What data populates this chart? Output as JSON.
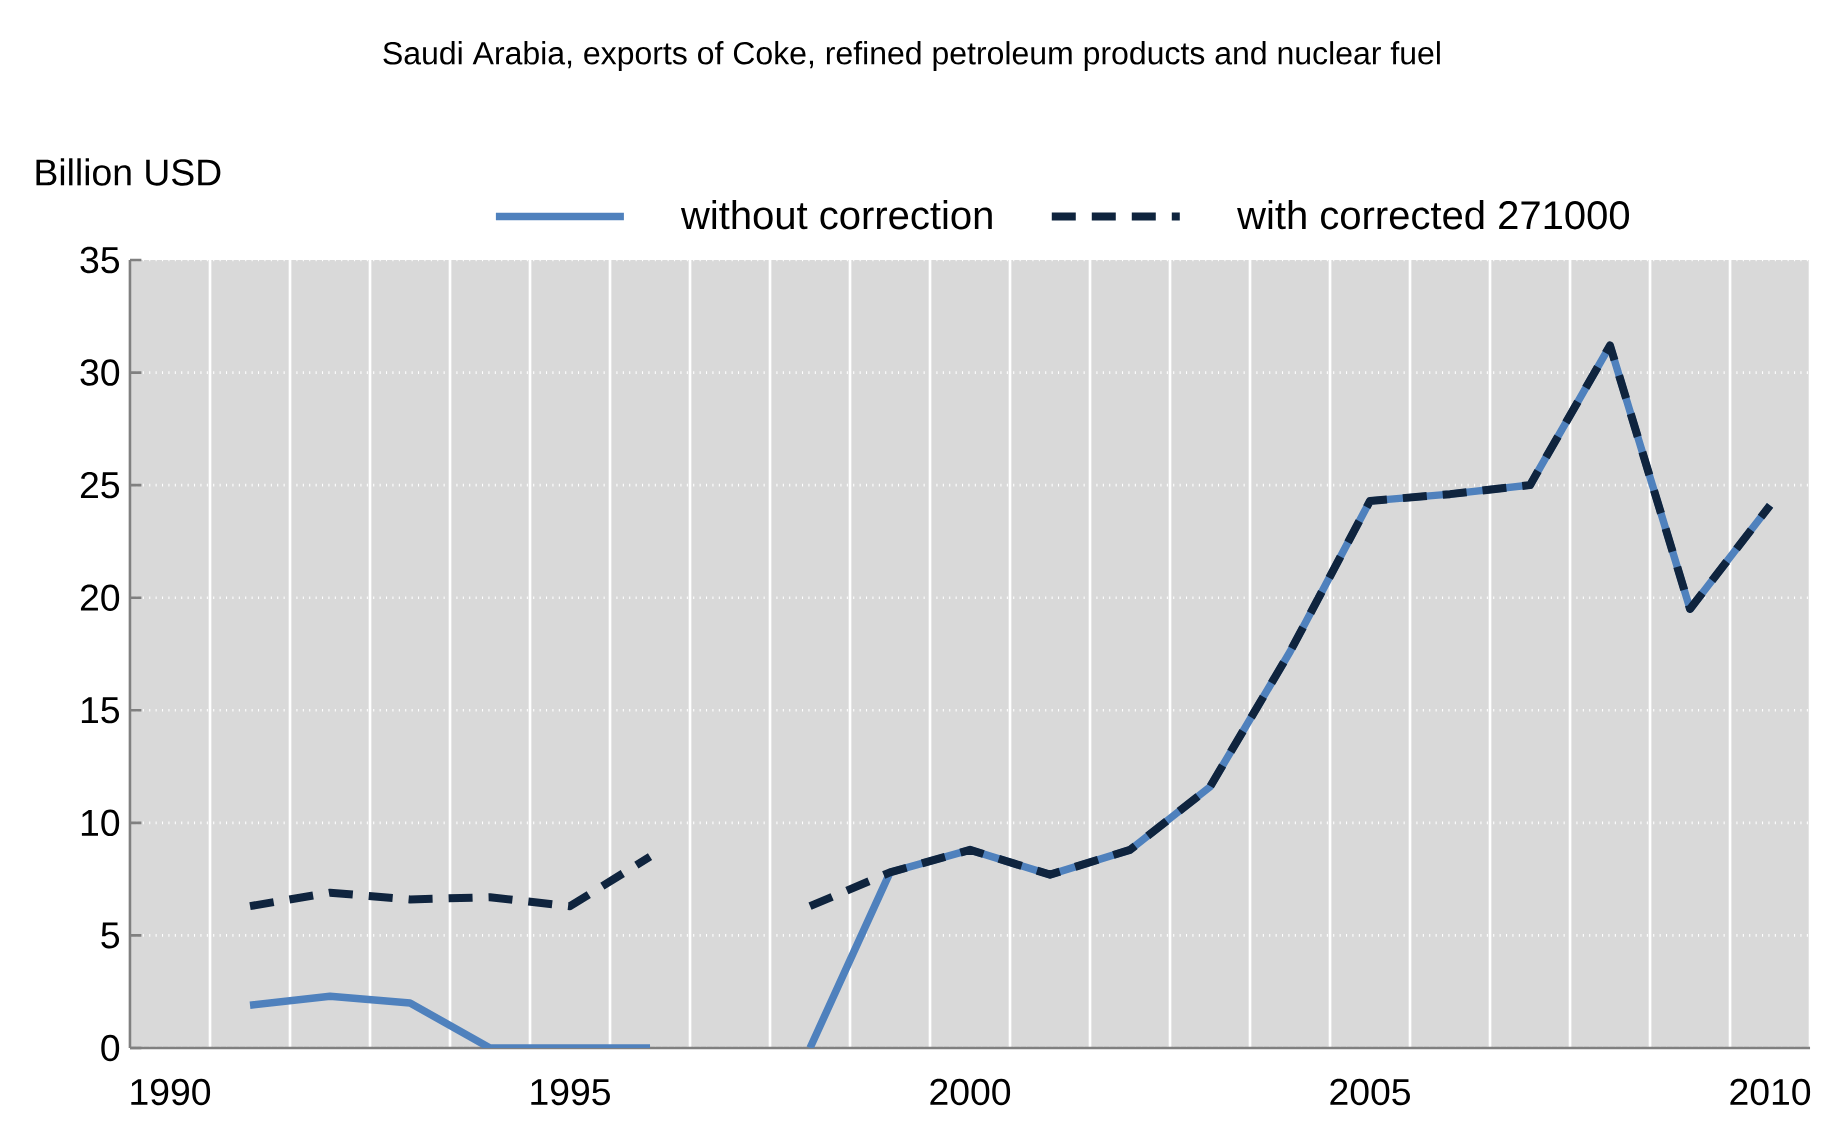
{
  "chart_data": {
    "type": "line",
    "title": "Saudi Arabia, exports of Coke, refined petroleum products and nuclear fuel",
    "ylabel": "Billion USD",
    "categories": [
      "1990",
      null,
      null,
      null,
      null,
      "1995",
      null,
      null,
      null,
      null,
      "2000",
      null,
      null,
      null,
      null,
      "2005",
      null,
      null,
      null,
      null,
      "2010"
    ],
    "series": [
      {
        "name": "without correction",
        "color": "#4f81bd",
        "line_style": "solid",
        "values": [
          null,
          1.9,
          2.3,
          2.0,
          0,
          0,
          0,
          null,
          0,
          7.8,
          8.8,
          7.7,
          8.8,
          11.6,
          17.6,
          24.3,
          24.6,
          25.0,
          31.2,
          19.5,
          24.1
        ]
      },
      {
        "name": "with corrected 271000",
        "color": "#0f243e",
        "line_style": "dashed",
        "values": [
          null,
          6.3,
          6.9,
          6.6,
          6.7,
          6.3,
          8.5,
          null,
          6.3,
          7.8,
          8.8,
          7.7,
          8.8,
          11.6,
          17.6,
          24.3,
          24.6,
          25.0,
          31.2,
          19.5,
          24.1
        ]
      }
    ],
    "ylim": [
      0,
      35
    ],
    "yticks": [
      0,
      5,
      10,
      15,
      20,
      25,
      30,
      35
    ],
    "grid": true,
    "legend": "top",
    "marker": "none"
  }
}
